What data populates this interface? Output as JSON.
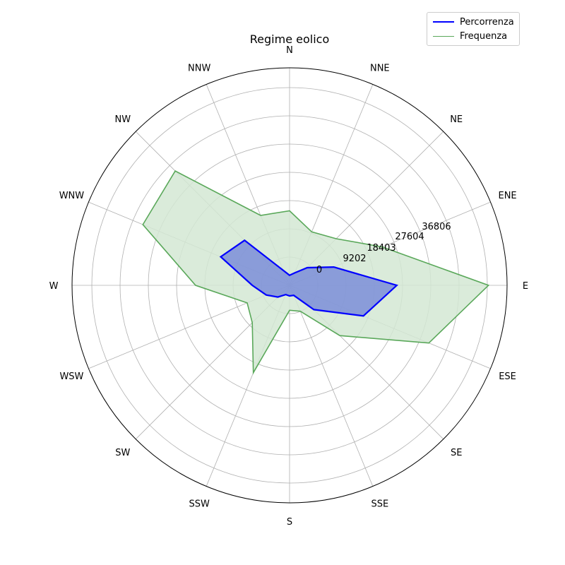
{
  "chart_data": {
    "type": "radar",
    "title": "Regime eolico",
    "directions": [
      "N",
      "NNE",
      "NE",
      "ENE",
      "E",
      "ESE",
      "SE",
      "SSE",
      "S",
      "SSW",
      "SW",
      "WSW",
      "W",
      "WNW",
      "NW",
      "NNW"
    ],
    "radial_ticks": [
      "0",
      "9202",
      "18403",
      "27604",
      "36806"
    ],
    "rmax": 36806,
    "grid": true,
    "legend_position": "top-right",
    "series": [
      {
        "name": "Percorrenza",
        "color": "#0000ff",
        "fill": "#6f82d8",
        "values": [
          1750,
          2350,
          4350,
          8350,
          18700,
          13950,
          6000,
          1900,
          1850,
          1750,
          2900,
          4400,
          6500,
          13000,
          11100,
          2800
        ]
      },
      {
        "name": "Frequenza",
        "color": "#5aa85a",
        "fill": "#d4e8d4",
        "values": [
          13000,
          10100,
          11500,
          17500,
          34700,
          26300,
          12400,
          4900,
          4350,
          16500,
          9200,
          8000,
          16400,
          27700,
          28200,
          13200
        ]
      }
    ]
  }
}
